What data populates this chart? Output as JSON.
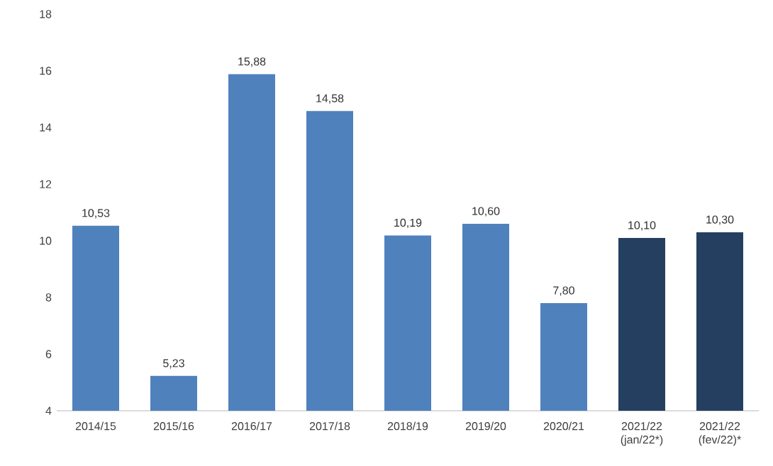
{
  "chart_data": {
    "type": "bar",
    "categories": [
      "2014/15",
      "2015/16",
      "2016/17",
      "2017/18",
      "2018/19",
      "2019/20",
      "2020/21",
      "2021/22 (jan/22*)",
      "2021/22 (fev/22)*"
    ],
    "values": [
      10.53,
      5.23,
      15.88,
      14.58,
      10.19,
      10.6,
      7.8,
      10.1,
      10.3
    ],
    "value_labels": [
      "10,53",
      "5,23",
      "15,88",
      "14,58",
      "10,19",
      "10,60",
      "7,80",
      "10,10",
      "10,30"
    ],
    "colors": [
      "#4f81bd",
      "#4f81bd",
      "#4f81bd",
      "#4f81bd",
      "#4f81bd",
      "#4f81bd",
      "#4f81bd",
      "#243f60",
      "#243f60"
    ],
    "ylim": [
      4,
      18
    ],
    "yticks": [
      4,
      6,
      8,
      10,
      12,
      14,
      16,
      18
    ]
  }
}
